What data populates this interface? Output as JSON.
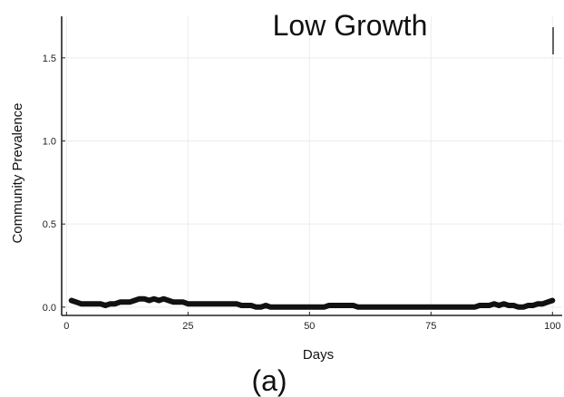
{
  "chart_data": {
    "type": "line",
    "title": "Low Growth",
    "xlabel": "Days",
    "ylabel": "Community Prevalence",
    "panel_label": "(a)",
    "xlim": [
      -1,
      102
    ],
    "ylim": [
      -0.05,
      1.75
    ],
    "xticks": [
      0,
      25,
      50,
      75,
      100
    ],
    "yticks": [
      0.0,
      0.5,
      1.0,
      1.5
    ],
    "xtick_labels": [
      "0",
      "25",
      "50",
      "75",
      "100"
    ],
    "ytick_labels": [
      "0.0",
      "0.5",
      "1.0",
      "1.5"
    ],
    "grid": true,
    "legend": "top-right",
    "series": [
      {
        "color": "#111111",
        "x": [
          1,
          2,
          3,
          4,
          5,
          6,
          7,
          8,
          9,
          10,
          11,
          12,
          13,
          14,
          15,
          16,
          17,
          18,
          19,
          20,
          21,
          22,
          23,
          24,
          25,
          26,
          27,
          28,
          29,
          30,
          31,
          32,
          33,
          34,
          35,
          36,
          37,
          38,
          39,
          40,
          41,
          42,
          43,
          44,
          45,
          46,
          47,
          48,
          49,
          50,
          51,
          52,
          53,
          54,
          55,
          56,
          57,
          58,
          59,
          60,
          61,
          62,
          63,
          64,
          65,
          66,
          67,
          68,
          69,
          70,
          71,
          72,
          73,
          74,
          75,
          76,
          77,
          78,
          79,
          80,
          81,
          82,
          83,
          84,
          85,
          86,
          87,
          88,
          89,
          90,
          91,
          92,
          93,
          94,
          95,
          96,
          97,
          98,
          99,
          100
        ],
        "y": [
          0.04,
          0.03,
          0.02,
          0.02,
          0.02,
          0.02,
          0.02,
          0.01,
          0.02,
          0.02,
          0.03,
          0.03,
          0.03,
          0.04,
          0.05,
          0.05,
          0.04,
          0.05,
          0.04,
          0.05,
          0.04,
          0.03,
          0.03,
          0.03,
          0.02,
          0.02,
          0.02,
          0.02,
          0.02,
          0.02,
          0.02,
          0.02,
          0.02,
          0.02,
          0.02,
          0.01,
          0.01,
          0.01,
          0.0,
          0.0,
          0.01,
          0.0,
          0.0,
          0.0,
          0.0,
          0.0,
          0.0,
          0.0,
          0.0,
          0.0,
          0.0,
          0.0,
          0.0,
          0.01,
          0.01,
          0.01,
          0.01,
          0.01,
          0.01,
          0.0,
          0.0,
          0.0,
          0.0,
          0.0,
          0.0,
          0.0,
          0.0,
          0.0,
          0.0,
          0.0,
          0.0,
          0.0,
          0.0,
          0.0,
          0.0,
          0.0,
          0.0,
          0.0,
          0.0,
          0.0,
          0.0,
          0.0,
          0.0,
          0.0,
          0.01,
          0.01,
          0.01,
          0.02,
          0.01,
          0.02,
          0.01,
          0.01,
          0.0,
          0.0,
          0.01,
          0.01,
          0.02,
          0.02,
          0.03,
          0.04
        ]
      }
    ]
  }
}
